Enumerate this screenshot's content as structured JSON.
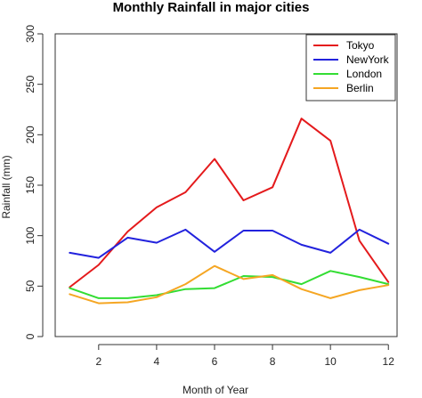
{
  "chart_data": {
    "type": "line",
    "title": "Monthly Rainfall in major cities",
    "xlabel": "Month of Year",
    "ylabel": "Rainfall (mm)",
    "x": [
      1,
      2,
      3,
      4,
      5,
      6,
      7,
      8,
      9,
      10,
      11,
      12
    ],
    "xlim": [
      0.5,
      12.3
    ],
    "ylim": [
      0,
      300
    ],
    "xticks": [
      2,
      4,
      6,
      8,
      10,
      12
    ],
    "yticks": [
      0,
      50,
      100,
      150,
      200,
      250,
      300
    ],
    "grid": false,
    "legend_position": "top-right",
    "series": [
      {
        "name": "Tokyo",
        "color": "#e41a1c",
        "values": [
          49,
          71,
          104,
          128,
          143,
          176,
          135,
          148,
          216,
          194,
          95,
          54
        ]
      },
      {
        "name": "NewYork",
        "color": "#2222dd",
        "values": [
          83,
          78,
          98,
          93,
          106,
          84,
          105,
          105,
          91,
          83,
          106,
          92
        ]
      },
      {
        "name": "London",
        "color": "#33dd33",
        "values": [
          48,
          38,
          38,
          41,
          47,
          48,
          60,
          59,
          52,
          65,
          59,
          52
        ]
      },
      {
        "name": "Berlin",
        "color": "#f5a623",
        "values": [
          42,
          33,
          34,
          39,
          52,
          70,
          57,
          61,
          47,
          38,
          46,
          51
        ]
      }
    ]
  }
}
